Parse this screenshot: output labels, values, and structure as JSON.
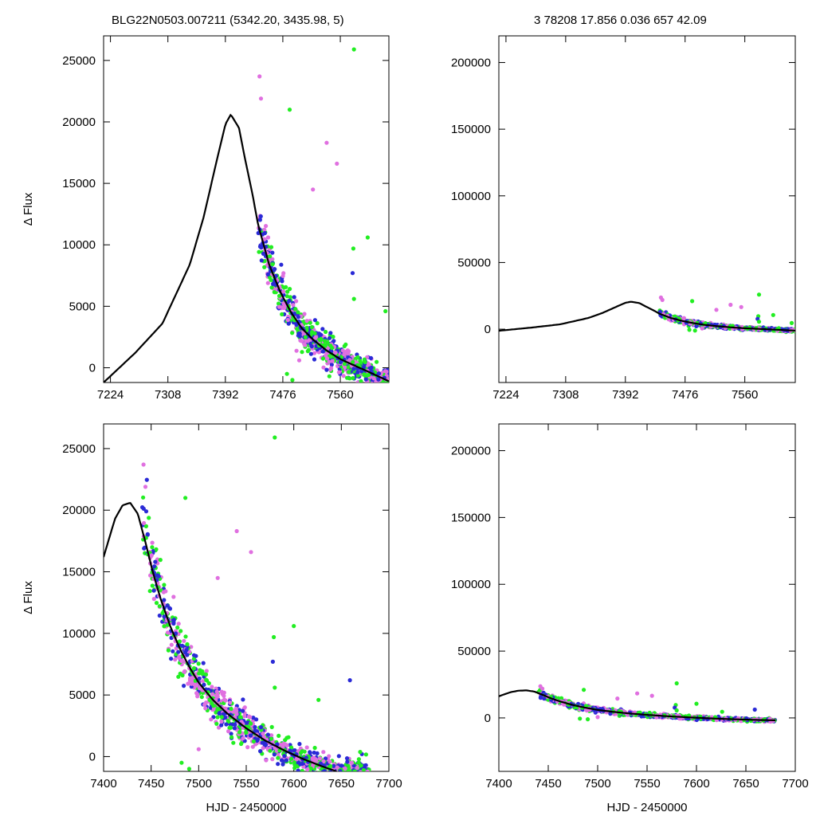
{
  "header": {
    "left": "BLG22N0503.007211 (5342.20, 3435.98,     5)",
    "right": "3   78208   17.856   0.036   657   42.09"
  },
  "colors": {
    "model": "#000000",
    "series_a": "#2a2ad6",
    "series_b": "#22ee22",
    "series_c": "#e070e0"
  },
  "chart_data": [
    {
      "id": "top-left",
      "type": "scatter",
      "xlabel": "",
      "ylabel": "Δ Flux",
      "xlim": [
        7214,
        7631
      ],
      "ylim": [
        -1200,
        27000
      ],
      "xticks": [
        7224,
        7308,
        7392,
        7476,
        7560
      ],
      "yticks": [
        0,
        5000,
        10000,
        15000,
        20000,
        25000
      ],
      "model": {
        "x": [
          7214,
          7260,
          7300,
          7340,
          7360,
          7380,
          7392,
          7400,
          7412,
          7420,
          7432,
          7440,
          7456,
          7472,
          7488,
          7504,
          7520,
          7540,
          7560,
          7580,
          7600,
          7631
        ],
        "y": [
          -1200,
          1200,
          3600,
          8400,
          12200,
          17000,
          19800,
          20600,
          19500,
          17200,
          14000,
          11600,
          8400,
          6200,
          4500,
          3200,
          2300,
          1400,
          700,
          200,
          -300,
          -1100
        ]
      }
    },
    {
      "id": "top-right",
      "type": "scatter",
      "xlabel": "",
      "ylabel": "",
      "xlim": [
        7214,
        7631
      ],
      "ylim": [
        -40000,
        220000
      ],
      "xticks": [
        7224,
        7308,
        7392,
        7476,
        7560
      ],
      "yticks": [
        0,
        50000,
        100000,
        150000,
        200000
      ],
      "model": {
        "x": [
          7214,
          7260,
          7300,
          7340,
          7360,
          7380,
          7392,
          7400,
          7412,
          7420,
          7432,
          7440,
          7456,
          7472,
          7488,
          7504,
          7520,
          7540,
          7560,
          7580,
          7600,
          7631
        ],
        "y": [
          -1200,
          1200,
          3600,
          8400,
          12200,
          17000,
          19800,
          20600,
          19500,
          17200,
          14000,
          11600,
          8400,
          6200,
          4500,
          3200,
          2300,
          1400,
          700,
          200,
          -300,
          -1100
        ]
      }
    },
    {
      "id": "bottom-left",
      "type": "scatter",
      "xlabel": "HJD - 2450000",
      "ylabel": "Δ Flux",
      "xlim": [
        7400,
        7700
      ],
      "ylim": [
        -1200,
        27000
      ],
      "xticks": [
        7400,
        7450,
        7500,
        7550,
        7600,
        7650,
        7700
      ],
      "yticks": [
        0,
        5000,
        10000,
        15000,
        20000,
        25000
      ],
      "model": {
        "x": [
          7400,
          7412,
          7420,
          7428,
          7436,
          7444,
          7452,
          7460,
          7470,
          7480,
          7490,
          7500,
          7515,
          7530,
          7550,
          7570,
          7590,
          7610,
          7630,
          7645
        ],
        "y": [
          16200,
          19300,
          20400,
          20600,
          19700,
          17400,
          14900,
          12800,
          10600,
          8800,
          7300,
          6000,
          4600,
          3500,
          2300,
          1300,
          500,
          -200,
          -800,
          -1200
        ]
      }
    },
    {
      "id": "bottom-right",
      "type": "scatter",
      "xlabel": "HJD - 2450000",
      "ylabel": "",
      "xlim": [
        7400,
        7700
      ],
      "ylim": [
        -40000,
        220000
      ],
      "xticks": [
        7400,
        7450,
        7500,
        7550,
        7600,
        7650,
        7700
      ],
      "yticks": [
        0,
        50000,
        100000,
        150000,
        200000
      ],
      "model": {
        "x": [
          7400,
          7412,
          7420,
          7428,
          7436,
          7444,
          7452,
          7460,
          7470,
          7480,
          7490,
          7500,
          7515,
          7530,
          7550,
          7570,
          7590,
          7610,
          7630,
          7660,
          7680
        ],
        "y": [
          16200,
          19300,
          20400,
          20600,
          19700,
          17400,
          14900,
          12800,
          10600,
          8800,
          7300,
          6000,
          4600,
          3500,
          2300,
          1300,
          500,
          -200,
          -800,
          -1500,
          -1800
        ]
      }
    }
  ]
}
